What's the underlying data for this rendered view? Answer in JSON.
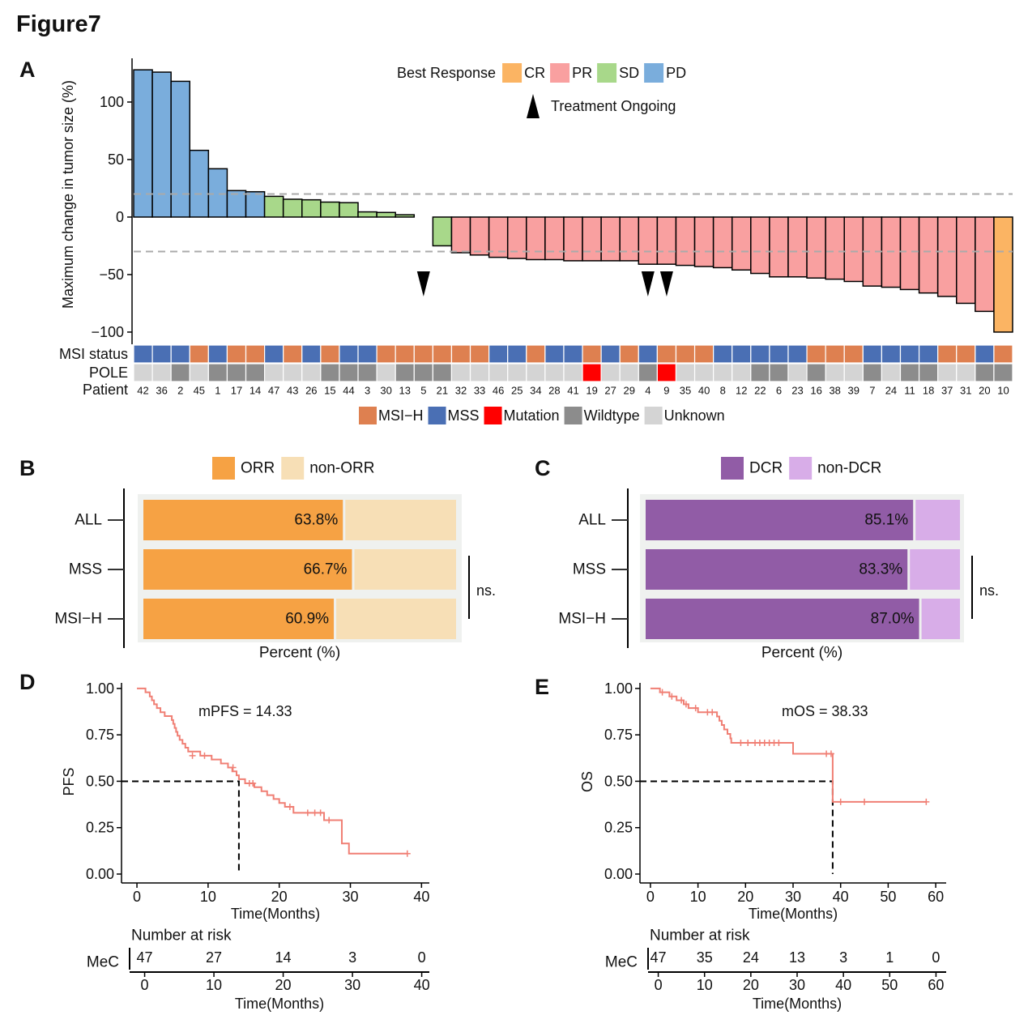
{
  "title": "Figure7",
  "chart_data": [
    {
      "panel": "A",
      "type": "waterfall",
      "ylabel": "Maximum change in tumor size (%)",
      "categories": [
        "42",
        "36",
        "2",
        "45",
        "1",
        "17",
        "14",
        "47",
        "43",
        "26",
        "15",
        "44",
        "3",
        "30",
        "13",
        "5",
        "21",
        "32",
        "33",
        "46",
        "25",
        "34",
        "28",
        "41",
        "19",
        "27",
        "29",
        "4",
        "9",
        "35",
        "40",
        "8",
        "12",
        "22",
        "6",
        "23",
        "16",
        "38",
        "39",
        "7",
        "24",
        "11",
        "18",
        "37",
        "31",
        "20",
        "10"
      ],
      "values": [
        128,
        126,
        118,
        58,
        42,
        23,
        22,
        18,
        15.5,
        15,
        13,
        12.5,
        4.5,
        4,
        2,
        0,
        -25,
        -31,
        -33,
        -35,
        -36,
        -37,
        -37,
        -38,
        -38,
        -38,
        -38,
        -41,
        -41,
        -42,
        -43,
        -44,
        -46,
        -49,
        -52,
        -52,
        -53,
        -54,
        -56,
        -60,
        -61,
        -63,
        -66,
        -69,
        -75,
        -82,
        -100
      ],
      "response": [
        "PD",
        "PD",
        "PD",
        "PD",
        "PD",
        "PD",
        "PD",
        "SD",
        "SD",
        "SD",
        "SD",
        "SD",
        "SD",
        "SD",
        "SD",
        "SD",
        "SD",
        "PR",
        "PR",
        "PR",
        "PR",
        "PR",
        "PR",
        "PR",
        "PR",
        "PR",
        "PR",
        "PR",
        "PR",
        "PR",
        "PR",
        "PR",
        "PR",
        "PR",
        "PR",
        "PR",
        "PR",
        "PR",
        "PR",
        "PR",
        "PR",
        "PR",
        "PR",
        "PR",
        "PR",
        "PR",
        "CR"
      ],
      "legend_title": "Best Response",
      "legend": [
        {
          "name": "CR",
          "color": "#fbb463"
        },
        {
          "name": "PR",
          "color": "#f9a0a0"
        },
        {
          "name": "SD",
          "color": "#a8d88a"
        },
        {
          "name": "PD",
          "color": "#7aaddc"
        }
      ],
      "annotation": "Treatment Ongoing",
      "ongoing": [
        "5",
        "4",
        "9"
      ],
      "reference_lines": [
        20,
        -30
      ],
      "ylim": [
        -110.6,
        138
      ],
      "yticks": [
        {
          "value": -100,
          "label": "−100"
        },
        {
          "value": -50,
          "label": "−50"
        },
        0,
        50,
        100
      ],
      "tracks": [
        {
          "name": "MSI status",
          "values": [
            "MSS",
            "MSS",
            "MSS",
            "MSI−H",
            "MSS",
            "MSI−H",
            "MSI−H",
            "MSS",
            "MSI−H",
            "MSS",
            "MSI−H",
            "MSS",
            "MSS",
            "MSI−H",
            "MSI−H",
            "MSI−H",
            "MSI−H",
            "MSI−H",
            "MSI−H",
            "MSS",
            "MSS",
            "MSI−H",
            "MSS",
            "MSS",
            "MSI−H",
            "MSS",
            "MSI−H",
            "MSS",
            "MSI−H",
            "MSI−H",
            "MSI−H",
            "MSS",
            "MSS",
            "MSS",
            "MSS",
            "MSS",
            "MSI−H",
            "MSI−H",
            "MSI−H",
            "MSS",
            "MSS",
            "MSS",
            "MSS",
            "MSI−H",
            "MSI−H",
            "MSS",
            "MSI−H"
          ]
        },
        {
          "name": "POLE",
          "values": [
            "Unknown",
            "Unknown",
            "Wildtype",
            "Unknown",
            "Wildtype",
            "Wildtype",
            "Wildtype",
            "Unknown",
            "Unknown",
            "Unknown",
            "Wildtype",
            "Wildtype",
            "Wildtype",
            "Unknown",
            "Wildtype",
            "Wildtype",
            "Wildtype",
            "Unknown",
            "Unknown",
            "Unknown",
            "Unknown",
            "Unknown",
            "Unknown",
            "Unknown",
            "Mutation",
            "Unknown",
            "Unknown",
            "Wildtype",
            "Mutation",
            "Unknown",
            "Unknown",
            "Unknown",
            "Unknown",
            "Wildtype",
            "Wildtype",
            "Unknown",
            "Wildtype",
            "Unknown",
            "Unknown",
            "Wildtype",
            "Unknown",
            "Wildtype",
            "Wildtype",
            "Unknown",
            "Unknown",
            "Wildtype",
            "Wildtype"
          ]
        }
      ],
      "track_label": "Patient",
      "track_legend": [
        {
          "name": "MSI−H",
          "color": "#de8050"
        },
        {
          "name": "MSS",
          "color": "#4a6fb4"
        },
        {
          "name": "Mutation",
          "color": "#ff0000"
        },
        {
          "name": "Wildtype",
          "color": "#8c8c8c"
        },
        {
          "name": "Unknown",
          "color": "#d4d4d4"
        }
      ]
    },
    {
      "panel": "B",
      "type": "stacked_bar_h",
      "categories": [
        "ALL",
        "MSS",
        "MSI−H"
      ],
      "series": [
        {
          "name": "ORR",
          "color": "#f6a244",
          "values": [
            63.8,
            66.7,
            60.9
          ],
          "value_labels": [
            "63.8%",
            "66.7%",
            "60.9%"
          ]
        },
        {
          "name": "non-ORR",
          "color": "#f7dfb6",
          "values": [
            36.2,
            33.3,
            39.1
          ]
        }
      ],
      "xlabel": "Percent (%)",
      "xlim": [
        0,
        100
      ],
      "annotation": "ns."
    },
    {
      "panel": "C",
      "type": "stacked_bar_h",
      "categories": [
        "ALL",
        "MSS",
        "MSI−H"
      ],
      "series": [
        {
          "name": "DCR",
          "color": "#915ca6",
          "values": [
            85.1,
            83.3,
            87.0
          ],
          "value_labels": [
            "85.1%",
            "83.3%",
            "87.0%"
          ]
        },
        {
          "name": "non-DCR",
          "color": "#d8ade8",
          "values": [
            14.9,
            16.7,
            13.0
          ]
        }
      ],
      "xlabel": "Percent (%)",
      "xlim": [
        0,
        100
      ],
      "annotation": "ns."
    },
    {
      "panel": "D",
      "type": "km",
      "ylabel": "PFS",
      "xlabel": "Time(Months)",
      "annotation": "mPFS = 14.33",
      "median": 14.33,
      "median_survival": 0.5,
      "color": "#f07f74",
      "x": [
        0,
        1.2,
        1.8,
        2.1,
        2.4,
        2.8,
        3.3,
        3.9,
        4.9,
        5.1,
        5.3,
        5.5,
        5.7,
        6.0,
        6.4,
        6.8,
        7.2,
        8.9,
        10.5,
        11.8,
        12.8,
        13.4,
        14.0,
        14.33,
        15.2,
        16.5,
        17.5,
        18.3,
        19.2,
        20.0,
        20.8,
        22.0,
        26.3,
        28.8,
        29.8,
        38
      ],
      "y": [
        1,
        0.979,
        0.957,
        0.936,
        0.915,
        0.894,
        0.872,
        0.851,
        0.83,
        0.809,
        0.787,
        0.766,
        0.745,
        0.723,
        0.702,
        0.681,
        0.66,
        0.638,
        0.617,
        0.596,
        0.574,
        0.553,
        0.532,
        0.511,
        0.489,
        0.468,
        0.446,
        0.425,
        0.404,
        0.383,
        0.362,
        0.33,
        0.29,
        0.165,
        0.11,
        0.11
      ],
      "censor_x": [
        7.8,
        9.5,
        13.5,
        15.8,
        16.3,
        21.5,
        24.0,
        25.0,
        25.8,
        27.0,
        38
      ],
      "censor_y": [
        0.638,
        0.638,
        0.574,
        0.489,
        0.489,
        0.362,
        0.33,
        0.33,
        0.33,
        0.29,
        0.11
      ],
      "xlim": [
        -2.17,
        41.1
      ],
      "xticks": [
        0,
        10,
        20,
        30,
        40
      ],
      "ylim": [
        -0.048,
        1.03
      ],
      "yticks": [
        {
          "value": 0,
          "label": "0.00"
        },
        0.25,
        {
          "value": 0.5,
          "label": "0.50"
        },
        0.75,
        {
          "value": 1,
          "label": "1.00"
        }
      ],
      "risk_title": "Number at risk",
      "risk_group": "MeC",
      "risk_values": [
        47,
        27,
        14,
        3,
        0
      ]
    },
    {
      "panel": "E",
      "type": "km",
      "ylabel": "OS",
      "xlabel": "Time(Months)",
      "annotation": "mOS = 38.33",
      "median": 38.33,
      "median_survival": 0.5,
      "color": "#f07f74",
      "x": [
        0,
        2,
        4,
        5.5,
        7,
        8,
        10,
        14,
        14.5,
        15,
        15.5,
        16.2,
        16.8,
        17,
        30,
        38.33,
        58
      ],
      "y": [
        1,
        0.979,
        0.957,
        0.936,
        0.915,
        0.894,
        0.872,
        0.849,
        0.826,
        0.803,
        0.779,
        0.755,
        0.731,
        0.707,
        0.648,
        0.389,
        0.389
      ],
      "censor_x": [
        2.5,
        4.5,
        6.5,
        7.5,
        9.5,
        12,
        13,
        19,
        20.5,
        22,
        23,
        24,
        25,
        26,
        27,
        37,
        38,
        40,
        45,
        58
      ],
      "censor_y": [
        0.979,
        0.957,
        0.936,
        0.915,
        0.894,
        0.872,
        0.872,
        0.707,
        0.707,
        0.707,
        0.707,
        0.707,
        0.707,
        0.707,
        0.707,
        0.648,
        0.648,
        0.389,
        0.389,
        0.389
      ],
      "xlim": [
        -2.2,
        62.2
      ],
      "xticks": [
        0,
        10,
        20,
        30,
        40,
        50,
        60
      ],
      "ylim": [
        -0.048,
        1.03
      ],
      "yticks": [
        {
          "value": 0,
          "label": "0.00"
        },
        0.25,
        {
          "value": 0.5,
          "label": "0.50"
        },
        0.75,
        {
          "value": 1,
          "label": "1.00"
        }
      ],
      "risk_title": "Number at risk",
      "risk_group": "MeC",
      "risk_values": [
        47,
        35,
        24,
        13,
        3,
        1,
        0
      ]
    }
  ]
}
